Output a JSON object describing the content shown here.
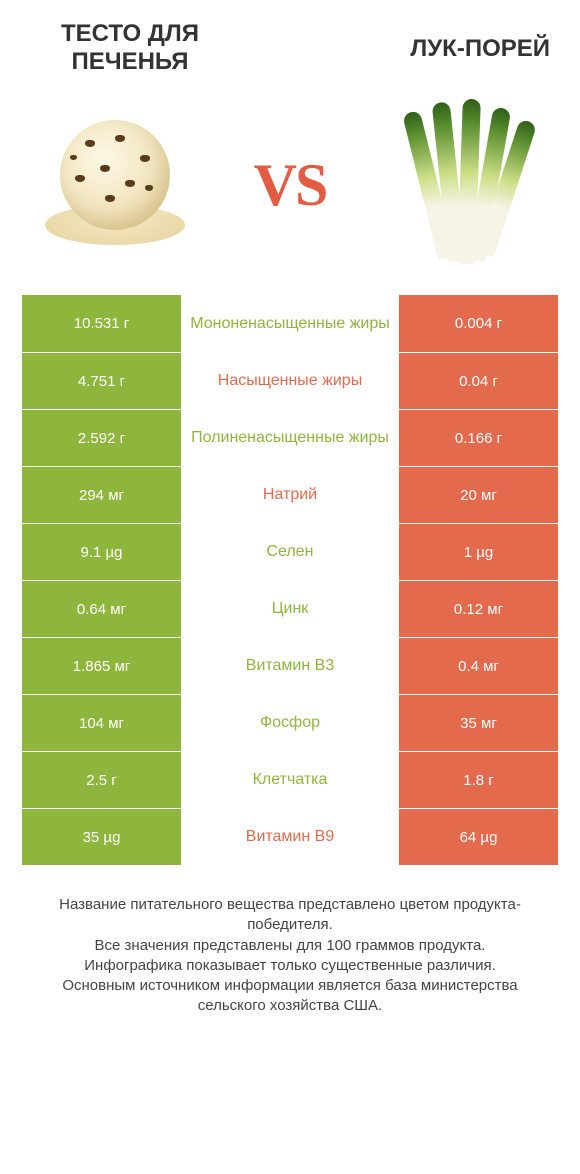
{
  "colors": {
    "green": "#8fb63c",
    "orange": "#e46a4e",
    "text": "#333333",
    "bg": "#ffffff"
  },
  "header": {
    "left_title": "ТЕСТО ДЛЯ ПЕЧЕНЬЯ",
    "right_title": "ЛУК-ПОРЕЙ",
    "vs_label": "VS"
  },
  "table": {
    "left_color": "#8fb63c",
    "right_color": "#e46a4e",
    "rows": [
      {
        "label": "Мононенасыщенные жиры",
        "left": "10.531 г",
        "right": "0.004 г",
        "winner": "left"
      },
      {
        "label": "Насыщенные жиры",
        "left": "4.751 г",
        "right": "0.04 г",
        "winner": "right"
      },
      {
        "label": "Полиненасыщенные жиры",
        "left": "2.592 г",
        "right": "0.166 г",
        "winner": "left"
      },
      {
        "label": "Натрий",
        "left": "294 мг",
        "right": "20 мг",
        "winner": "right"
      },
      {
        "label": "Селен",
        "left": "9.1 µg",
        "right": "1 µg",
        "winner": "left"
      },
      {
        "label": "Цинк",
        "left": "0.64 мг",
        "right": "0.12 мг",
        "winner": "left"
      },
      {
        "label": "Витамин B3",
        "left": "1.865 мг",
        "right": "0.4 мг",
        "winner": "left"
      },
      {
        "label": "Фосфор",
        "left": "104 мг",
        "right": "35 мг",
        "winner": "left"
      },
      {
        "label": "Клетчатка",
        "left": "2.5 г",
        "right": "1.8 г",
        "winner": "left"
      },
      {
        "label": "Витамин B9",
        "left": "35 µg",
        "right": "64 µg",
        "winner": "right"
      }
    ]
  },
  "footer": {
    "line1": "Название питательного вещества представлено цветом продукта-победителя.",
    "line2": "Все значения представлены для 100 граммов продукта.",
    "line3": "Инфографика показывает только существенные различия.",
    "line4": "Основным источником информации является база министерства сельского хозяйства США."
  }
}
